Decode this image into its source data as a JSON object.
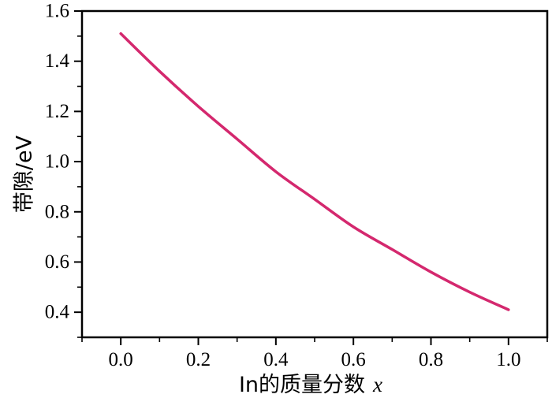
{
  "chart_data": {
    "type": "line",
    "title": "",
    "xlabel": "In的质量分数",
    "xlabel_variable": "x",
    "ylabel": "带隙/eV",
    "xlim": [
      -0.1,
      1.1
    ],
    "ylim": [
      0.3,
      1.6
    ],
    "xticks": [
      "0.0",
      "0.2",
      "0.4",
      "0.6",
      "0.8",
      "1.0"
    ],
    "yticks": [
      "0.4",
      "0.6",
      "0.8",
      "1.0",
      "1.2",
      "1.4",
      "1.6"
    ],
    "grid": false,
    "legend": false,
    "series": [
      {
        "color": "#d4286e",
        "x": [
          0.0,
          0.1,
          0.2,
          0.3,
          0.4,
          0.5,
          0.6,
          0.7,
          0.8,
          0.9,
          1.0
        ],
        "y": [
          1.51,
          1.36,
          1.22,
          1.09,
          0.96,
          0.85,
          0.74,
          0.65,
          0.56,
          0.48,
          0.41
        ]
      }
    ]
  }
}
